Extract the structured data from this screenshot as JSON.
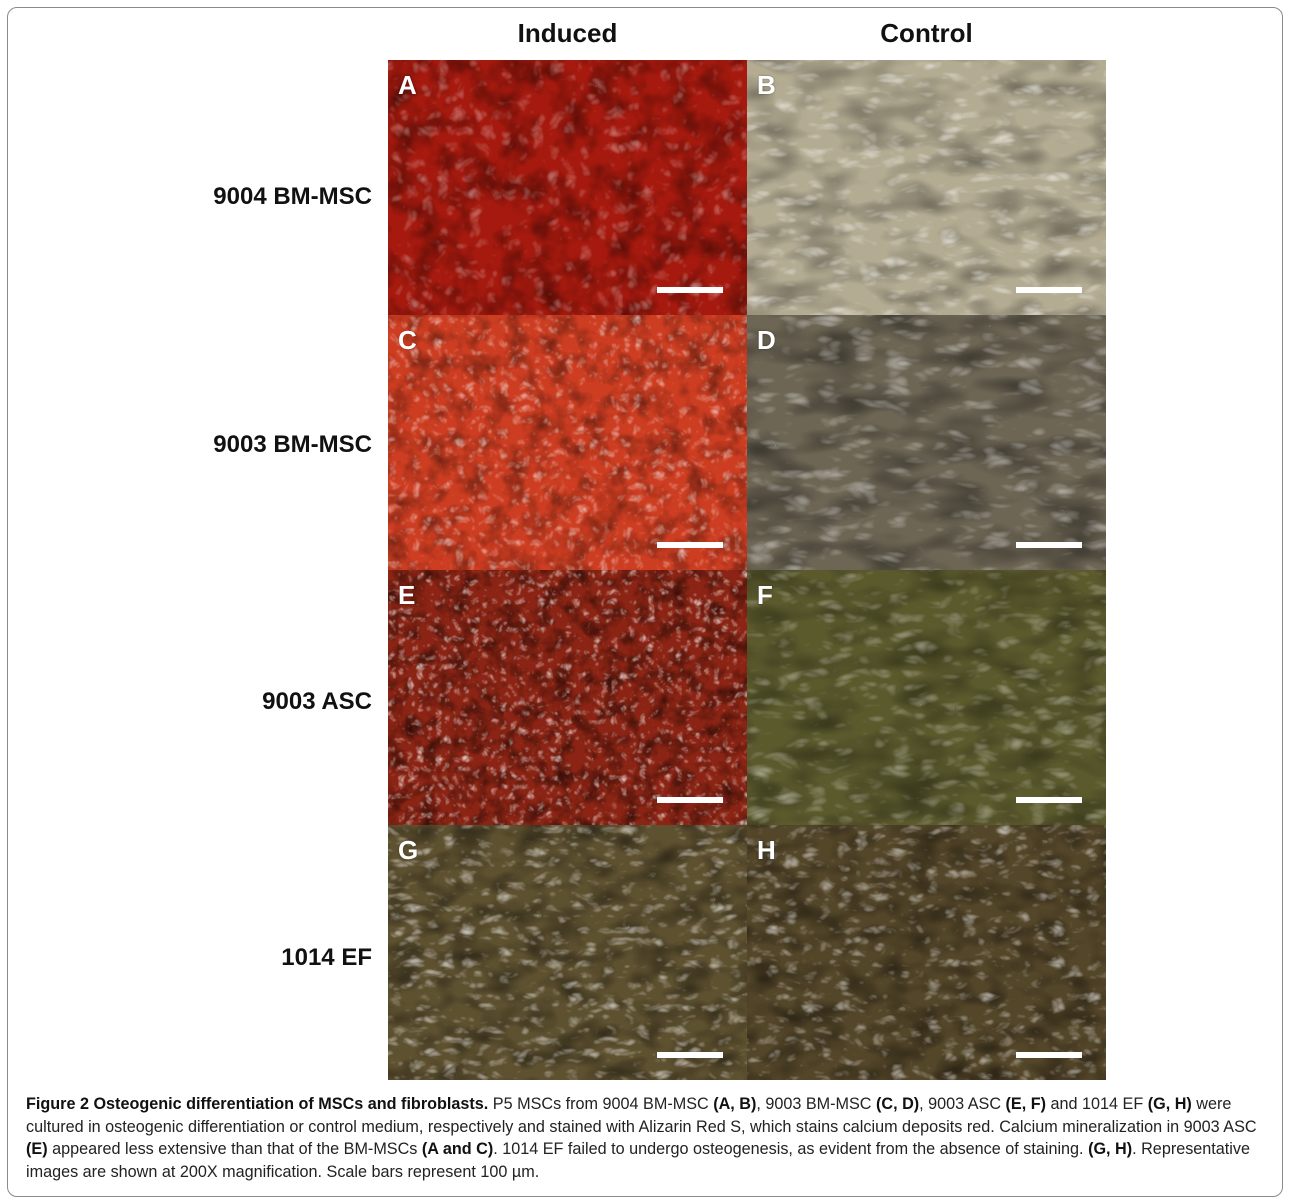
{
  "figure": {
    "columns": [
      "Induced",
      "Control"
    ],
    "rows": [
      {
        "label": "9004 BM-MSC",
        "panels": [
          "A",
          "B"
        ]
      },
      {
        "label": "9003 BM-MSC",
        "panels": [
          "C",
          "D"
        ]
      },
      {
        "label": "9003 ASC",
        "panels": [
          "E",
          "F"
        ]
      },
      {
        "label": "1014 EF",
        "panels": [
          "G",
          "H"
        ]
      }
    ],
    "panel_colors": {
      "A": "#a5190e",
      "B": "#b3ab92",
      "C": "#cd3d21",
      "D": "#6d6655",
      "E": "#8b2414",
      "F": "#5b5a2d",
      "G": "#5e5130",
      "H": "#544629"
    }
  },
  "caption": {
    "title": "Figure 2 Osteogenic differentiation of MSCs and fibroblasts.",
    "t1": " P5 MSCs from 9004 BM-MSC ",
    "b1": "(A, B)",
    "t2": ", 9003 BM-MSC ",
    "b2": "(C, D)",
    "t3": ", 9003 ASC ",
    "b3": "(E, F)",
    "t4": " and 1014 EF ",
    "b4": "(G, H)",
    "t5": " were cultured in osteogenic differentiation or control medium, respectively and stained with Alizarin Red S, which stains calcium deposits red. Calcium mineralization in 9003 ASC ",
    "b5": "(E)",
    "t6": " appeared less extensive than that of the BM-MSCs ",
    "b6": "(A and C)",
    "t7": ". 1014 EF failed to undergo osteogenesis, as evident from the absence of staining. ",
    "b7": "(G, H)",
    "t8": ". Representative images are shown at 200X magnification. Scale bars represent 100 µm."
  }
}
